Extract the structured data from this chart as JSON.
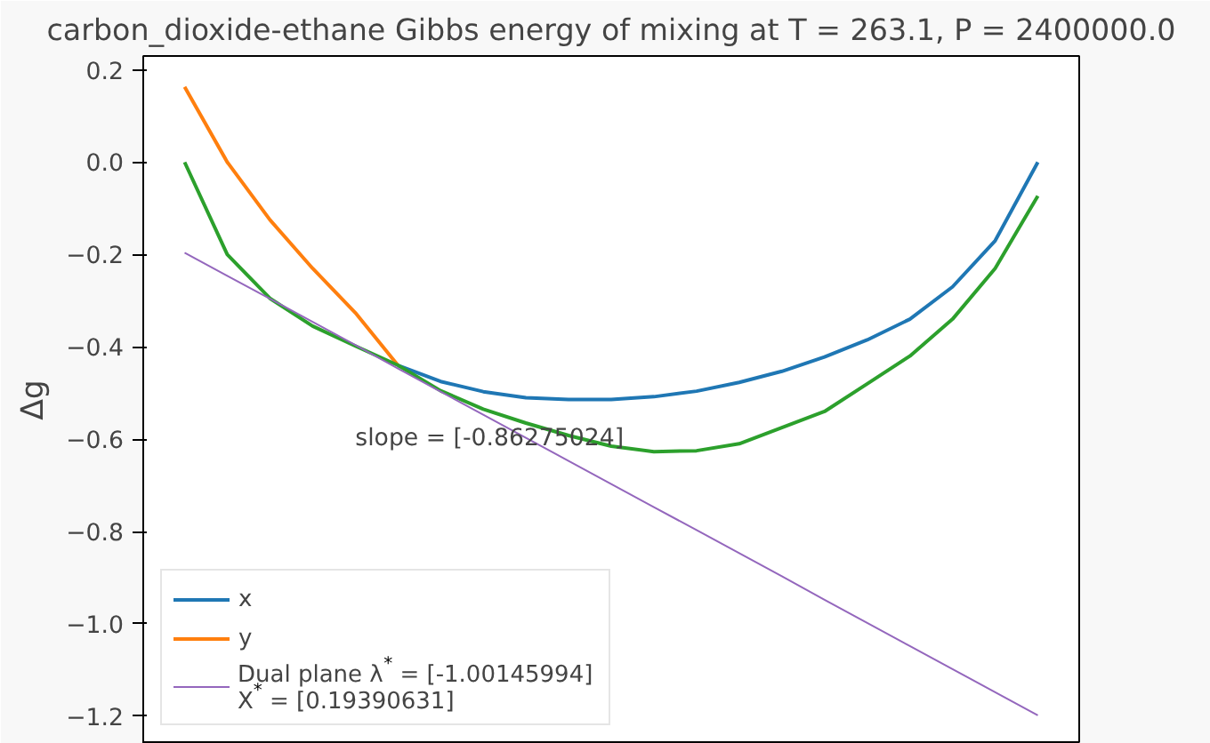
{
  "chart_data": {
    "type": "line",
    "title": "carbon_dioxide-ethane Gibbs energy of mixing at T = 263.1, P = 2400000.0",
    "ylabel": "Δg",
    "categories": [
      null,
      null,
      null,
      null,
      null,
      null,
      null,
      null,
      null,
      null,
      null,
      null,
      null,
      null,
      null,
      null,
      null,
      null,
      null,
      null,
      null
    ],
    "series": [
      {
        "name": "x",
        "color": "#1f77b4",
        "values": [
          null,
          null,
          null,
          null,
          null,
          -0.44,
          -0.475,
          -0.497,
          -0.51,
          -0.514,
          -0.514,
          -0.508,
          -0.496,
          -0.477,
          -0.453,
          -0.422,
          -0.385,
          -0.34,
          -0.27,
          -0.17,
          0
        ]
      },
      {
        "name": "y",
        "color": "#ff7f0e",
        "values": [
          0.163,
          0.0,
          -0.125,
          -0.23,
          -0.326,
          -0.44,
          null,
          null,
          null,
          null,
          null,
          null,
          null,
          null,
          null,
          null,
          null,
          null,
          null,
          null,
          null
        ]
      },
      {
        "color": "#2ca02c",
        "values": [
          0,
          -0.2,
          -0.295,
          -0.355,
          -0.398,
          -0.44,
          -0.495,
          -0.535,
          -0.565,
          -0.592,
          -0.615,
          -0.627,
          -0.625,
          -0.61,
          -0.575,
          -0.54,
          -0.48,
          -0.42,
          -0.34,
          -0.23,
          -0.073
        ]
      },
      {
        "name": "Dual plane λ$^{*}$ = [-1.00145994]\nX$^{*}$ = [0.19390631]",
        "color": "#9467bd",
        "values": [
          -0.196,
          -0.246,
          -0.296,
          -0.346,
          -0.396,
          -0.447,
          -0.497,
          -0.547,
          -0.597,
          -0.647,
          -0.697,
          -0.747,
          -0.797,
          -0.847,
          -0.897,
          -0.948,
          -0.998,
          -1.048,
          -1.098,
          -1.148,
          -1.198
        ]
      }
    ],
    "annotations": [
      "slope = [-0.86275024]"
    ],
    "ylim": [
      -1.26,
      0.23
    ],
    "yticks": [
      {
        "value": 0.2,
        "label": "0.2"
      },
      {
        "value": 0.0,
        "label": "0.0"
      },
      {
        "value": -0.2,
        "label": "−0.2"
      },
      {
        "value": -0.4,
        "label": "−0.4"
      },
      {
        "value": -0.6,
        "label": "−0.6"
      },
      {
        "value": -0.8,
        "label": "−0.8"
      },
      {
        "value": -1.0,
        "label": "−1.0"
      },
      {
        "value": -1.2,
        "label": "−1.2"
      }
    ],
    "tick_labels": "y",
    "grid": false,
    "legend": "bottom left",
    "line_style": "solid",
    "marker": "none"
  }
}
